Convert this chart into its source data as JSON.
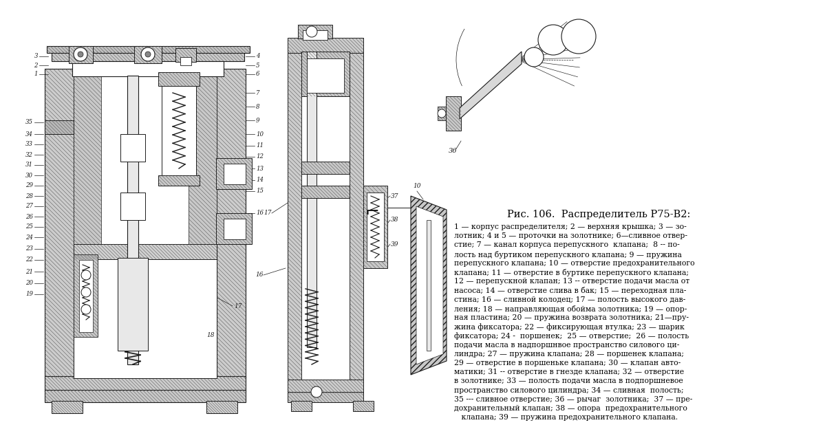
{
  "bg_color": "#f5f5f0",
  "fig_width": 11.83,
  "fig_height": 6.21,
  "title": "Рис. 106.  Распределитель Р75-В2:",
  "desc_lines": [
    "1 — корпус распределителя; 2 — верхняя крышка; 3 — зо-",
    "лотник; 4 и 5 — проточки на золотнике; 6—сливное отвер-",
    "стие; 7 — канал корпуса перепускного  клапана;  8 -- по-",
    "лость над буртиком перепускного клапана; 9 — пружина",
    "перепускного клапана; 10 — отверстие предохранительного",
    "клапана; 11 — отверстие в буртике перепускного клапана;",
    "12 — перепускной клапан; 13 -- отверстие подачи масла от",
    "насоса; 14 — отверстие слива в бак; 15 — переходная пла-",
    "стина; 16 — сливной колодец; 17 — полость высокого дав-",
    "ления; 18 — направляющая обойма золотника; 19 — опор-",
    "ная пластина; 20 — пружина возврата золотника; 21—пру-",
    "жина фиксатора; 22 — фиксирующая втулка; 23 — шарик",
    "фиксатора; 24 -  поршенек;  25 — отверстие;  26 — полость",
    "подачи масла в надпоршнвое пространство силового ци-",
    "линдра; 27 — пружина клапана; 28 — поршенек клапана;",
    "29 — отверстие в поршеньке клапана; 30 — клапан авто-",
    "матики; 31 -- отверстие в гнезде клапана; 32 — отверстие",
    "в золотнике; 33 — полость подачи масла в подпоршневое",
    "пространство силового цилиндра; 34 — сливная  полость;",
    "35 --- сливное отверстие; 36 — рычаг  золотника;  37 — пре-",
    "дохранительный клапан; 38 — опора  предохранительного",
    "   клапана; 39 — пружина предохранительного клапана."
  ]
}
